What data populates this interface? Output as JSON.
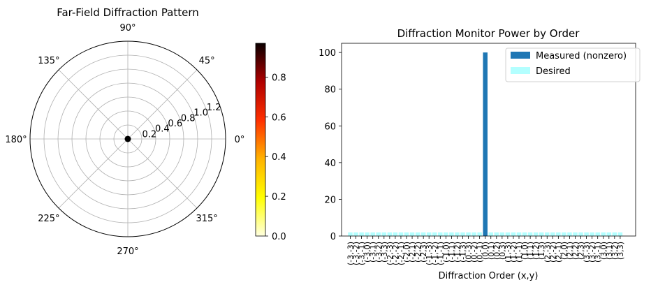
{
  "chart_data": [
    {
      "type": "polar",
      "title": "Far-Field Diffraction Pattern",
      "angle_ticks": [
        "0°",
        "45°",
        "90°",
        "135°",
        "180°",
        "225°",
        "270°",
        "315°"
      ],
      "angle_tick_degrees": [
        0,
        45,
        90,
        135,
        180,
        225,
        270,
        315
      ],
      "radial_ticks": [
        0.2,
        0.4,
        0.6,
        0.8,
        1.0,
        1.2
      ],
      "radial_tick_labels": [
        "0.2",
        "0.4",
        "0.6",
        "0.8",
        "1.0",
        "1.2"
      ],
      "rlim": [
        0,
        1.4
      ],
      "grid": true,
      "colormap": "hot_r",
      "colorbar": {
        "ticks": [
          "0.0",
          "0.2",
          "0.4",
          "0.6",
          "0.8"
        ],
        "tick_values": [
          0.0,
          0.2,
          0.4,
          0.6,
          0.8
        ],
        "range": [
          0,
          0.97
        ]
      },
      "center_point": {
        "r": 0,
        "theta": 0
      }
    },
    {
      "type": "bar",
      "title": "Diffraction Monitor Power by Order",
      "xlabel": "Diffraction Order (x,y)",
      "ylabel": "",
      "ylim": [
        0,
        105
      ],
      "y_ticks": [
        0,
        20,
        40,
        60,
        80,
        100
      ],
      "categories": [
        "(-3,-3)",
        "(-3,-2)",
        "(-3,-1)",
        "(-3,0)",
        "(-3,1)",
        "(-3,2)",
        "(-3,3)",
        "(-2,-3)",
        "(-2,-2)",
        "(-2,-1)",
        "(-2,0)",
        "(-2,1)",
        "(-2,2)",
        "(-2,3)",
        "(-1,-3)",
        "(-1,-2)",
        "(-1,-1)",
        "(-1,0)",
        "(-1,1)",
        "(-1,2)",
        "(-1,3)",
        "(0,-3)",
        "(0,-2)",
        "(0,-1)",
        "(0,0)",
        "(0,1)",
        "(0,2)",
        "(0,3)",
        "(1,-3)",
        "(1,-2)",
        "(1,-1)",
        "(1,0)",
        "(1,1)",
        "(1,2)",
        "(1,3)",
        "(2,-3)",
        "(2,-2)",
        "(2,-1)",
        "(2,0)",
        "(2,1)",
        "(2,2)",
        "(2,3)",
        "(3,-3)",
        "(3,-2)",
        "(3,-1)",
        "(3,0)",
        "(3,1)",
        "(3,2)",
        "(3,3)"
      ],
      "series": [
        {
          "name": "Measured (nonzero)",
          "color": "#1f77b4",
          "values": [
            0,
            0,
            0,
            0,
            0,
            0,
            0,
            0,
            0,
            0,
            0,
            0,
            0,
            0,
            0,
            0,
            0,
            0,
            0,
            0,
            0,
            0,
            0,
            0,
            100,
            0,
            0,
            0,
            0,
            0,
            0,
            0,
            0,
            0,
            0,
            0,
            0,
            0,
            0,
            0,
            0,
            0,
            0,
            0,
            0,
            0,
            0,
            0,
            0
          ]
        },
        {
          "name": "Desired",
          "color": "#b3ffff",
          "values": [
            2,
            2,
            2,
            2,
            2,
            2,
            2,
            2,
            2,
            2,
            2,
            2,
            2,
            2,
            2,
            2,
            2,
            2,
            2,
            2,
            2,
            2,
            2,
            2,
            2,
            2,
            2,
            2,
            2,
            2,
            2,
            2,
            2,
            2,
            2,
            2,
            2,
            2,
            2,
            2,
            2,
            2,
            2,
            2,
            2,
            2,
            2,
            2,
            2
          ]
        }
      ],
      "legend_position": "top-right"
    }
  ]
}
